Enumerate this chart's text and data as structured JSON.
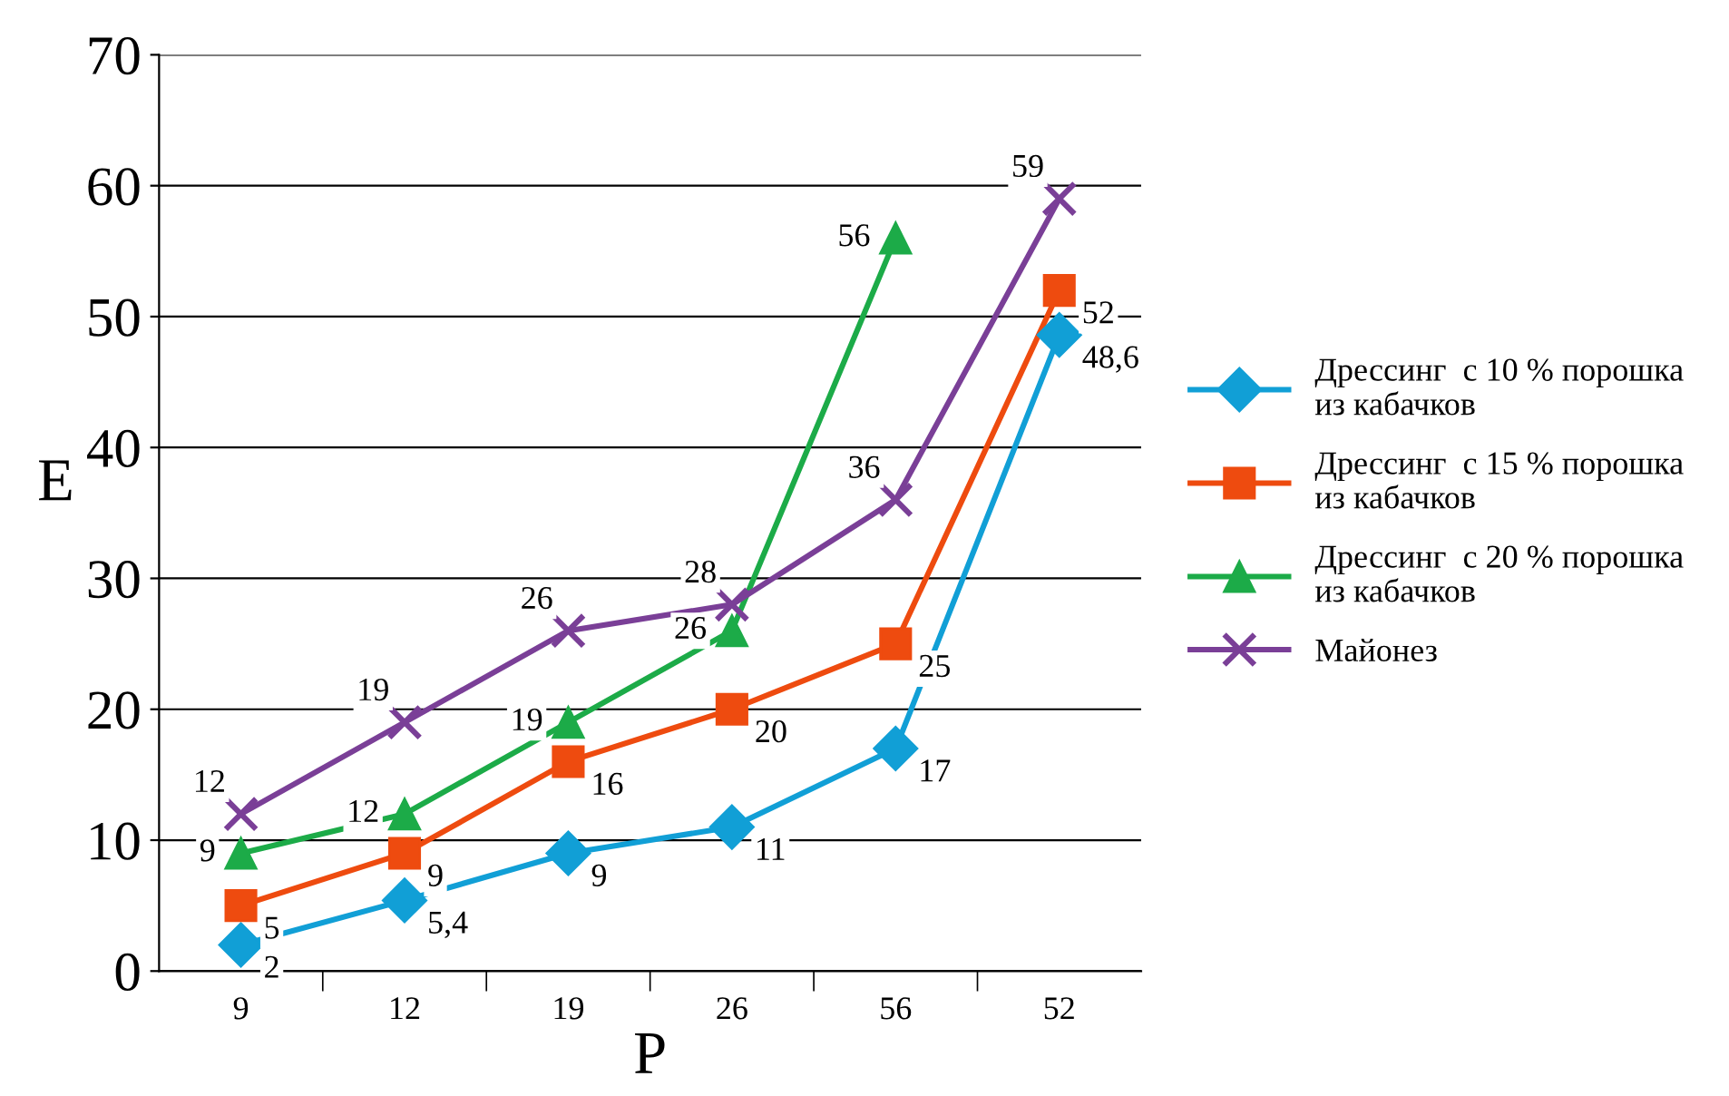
{
  "chart_data": {
    "type": "line",
    "xlabel": "P",
    "ylabel": "E",
    "categories": [
      "9",
      "12",
      "19",
      "26",
      "56",
      "52"
    ],
    "ylim": [
      0,
      70
    ],
    "yticks": [
      0,
      10,
      20,
      30,
      40,
      50,
      60,
      70
    ],
    "grid": "y",
    "legend": "right",
    "series": [
      {
        "name": "Дрессинг  с 10 % порошка\nиз кабачков",
        "color": "#119fd6",
        "marker": "diamond",
        "values": [
          2,
          5.4,
          9,
          11,
          17,
          48.6
        ],
        "value_labels": [
          "2",
          "5,4",
          "9",
          "11",
          "17",
          "48,6"
        ]
      },
      {
        "name": "Дрессинг  с 15 % порошка\nиз кабачков",
        "color": "#ee4b0f",
        "marker": "square",
        "values": [
          5,
          9,
          16,
          20,
          25,
          52
        ],
        "value_labels": [
          "5",
          "9",
          "16",
          "20",
          "25",
          "52"
        ]
      },
      {
        "name": "Дрессинг  с 20 % порошка\nиз кабачков",
        "color": "#1cab48",
        "marker": "triangle",
        "values": [
          9,
          12,
          19,
          26,
          56,
          null
        ],
        "value_labels": [
          "9",
          "12",
          "19",
          "26",
          "56",
          null
        ]
      },
      {
        "name": "Майонез",
        "color": "#7a3f97",
        "marker": "cross",
        "values": [
          12,
          19,
          26,
          28,
          36,
          59
        ],
        "value_labels": [
          "12",
          "19",
          "26",
          "28",
          "36",
          "59"
        ]
      }
    ]
  }
}
